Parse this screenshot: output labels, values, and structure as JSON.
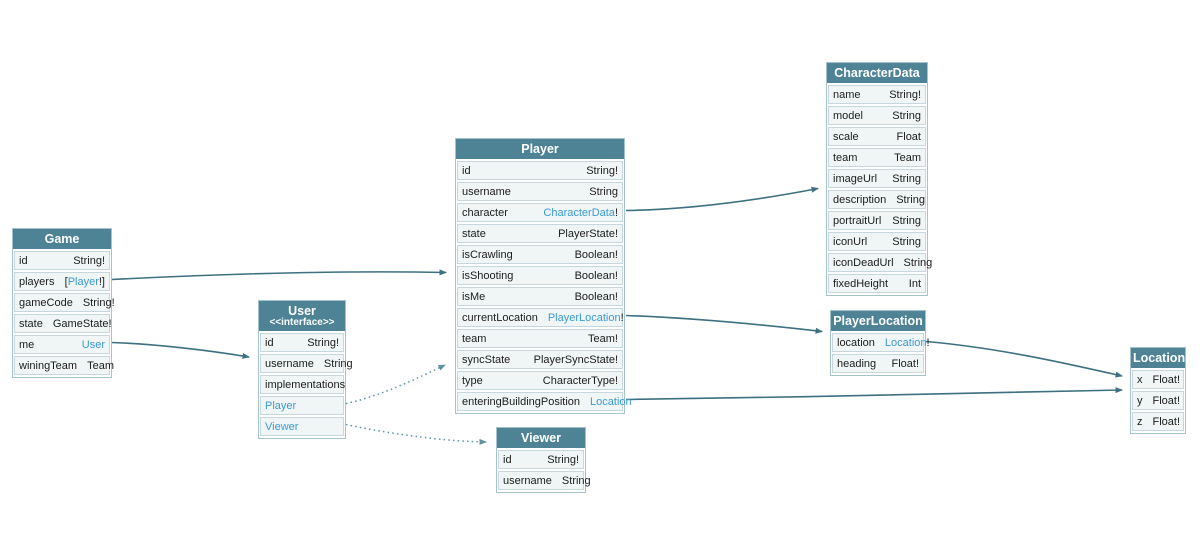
{
  "diagram": {
    "colors": {
      "header_bg": "#4d8394",
      "header_text": "#ffffff",
      "row_bg": "#f0f5f6",
      "row_border": "#c6d8dd",
      "field_text": "#1c1c1c",
      "link_text": "#3c9bd4",
      "edge": "#3d7080",
      "edge_dotted": "#5e93a2"
    },
    "tables": [
      {
        "id": "Game",
        "title": "Game",
        "subtitle": "",
        "fields": [
          {
            "name": "id",
            "type_segments": [
              {
                "text": "String!",
                "link": false
              }
            ]
          },
          {
            "name": "players",
            "type_segments": [
              {
                "text": "[",
                "link": false
              },
              {
                "text": "Player",
                "link": true
              },
              {
                "text": "!]",
                "link": false
              }
            ]
          },
          {
            "name": "gameCode",
            "type_segments": [
              {
                "text": "String!",
                "link": false
              }
            ]
          },
          {
            "name": "state",
            "type_segments": [
              {
                "text": "GameState!",
                "link": false
              }
            ]
          },
          {
            "name": "me",
            "type_segments": [
              {
                "text": "User",
                "link": true
              }
            ]
          },
          {
            "name": "winingTeam",
            "type_segments": [
              {
                "text": "Team",
                "link": false
              }
            ]
          }
        ]
      },
      {
        "id": "User",
        "title": "User",
        "subtitle": "<<interface>>",
        "fields": [
          {
            "name": "id",
            "type_segments": [
              {
                "text": "String!",
                "link": false
              }
            ]
          },
          {
            "name": "username",
            "type_segments": [
              {
                "text": "String",
                "link": false
              }
            ]
          },
          {
            "name": "implementations",
            "type_segments": []
          },
          {
            "name": "Player",
            "name_link": true,
            "type_segments": []
          },
          {
            "name": "Viewer",
            "name_link": true,
            "type_segments": []
          }
        ]
      },
      {
        "id": "Player",
        "title": "Player",
        "subtitle": "",
        "fields": [
          {
            "name": "id",
            "type_segments": [
              {
                "text": "String!",
                "link": false
              }
            ]
          },
          {
            "name": "username",
            "type_segments": [
              {
                "text": "String",
                "link": false
              }
            ]
          },
          {
            "name": "character",
            "type_segments": [
              {
                "text": "CharacterData",
                "link": true
              },
              {
                "text": "!",
                "link": false
              }
            ]
          },
          {
            "name": "state",
            "type_segments": [
              {
                "text": "PlayerState!",
                "link": false
              }
            ]
          },
          {
            "name": "isCrawling",
            "type_segments": [
              {
                "text": "Boolean!",
                "link": false
              }
            ]
          },
          {
            "name": "isShooting",
            "type_segments": [
              {
                "text": "Boolean!",
                "link": false
              }
            ]
          },
          {
            "name": "isMe",
            "type_segments": [
              {
                "text": "Boolean!",
                "link": false
              }
            ]
          },
          {
            "name": "currentLocation",
            "type_segments": [
              {
                "text": "PlayerLocation",
                "link": true
              },
              {
                "text": "!",
                "link": false
              }
            ]
          },
          {
            "name": "team",
            "type_segments": [
              {
                "text": "Team!",
                "link": false
              }
            ]
          },
          {
            "name": "syncState",
            "type_segments": [
              {
                "text": "PlayerSyncState!",
                "link": false
              }
            ]
          },
          {
            "name": "type",
            "type_segments": [
              {
                "text": "CharacterType!",
                "link": false
              }
            ]
          },
          {
            "name": "enteringBuildingPosition",
            "type_segments": [
              {
                "text": "Location",
                "link": true
              }
            ]
          }
        ]
      },
      {
        "id": "Viewer",
        "title": "Viewer",
        "subtitle": "",
        "fields": [
          {
            "name": "id",
            "type_segments": [
              {
                "text": "String!",
                "link": false
              }
            ]
          },
          {
            "name": "username",
            "type_segments": [
              {
                "text": "String",
                "link": false
              }
            ]
          }
        ]
      },
      {
        "id": "CharacterData",
        "title": "CharacterData",
        "subtitle": "",
        "fields": [
          {
            "name": "name",
            "type_segments": [
              {
                "text": "String!",
                "link": false
              }
            ]
          },
          {
            "name": "model",
            "type_segments": [
              {
                "text": "String",
                "link": false
              }
            ]
          },
          {
            "name": "scale",
            "type_segments": [
              {
                "text": "Float",
                "link": false
              }
            ]
          },
          {
            "name": "team",
            "type_segments": [
              {
                "text": "Team",
                "link": false
              }
            ]
          },
          {
            "name": "imageUrl",
            "type_segments": [
              {
                "text": "String",
                "link": false
              }
            ]
          },
          {
            "name": "description",
            "type_segments": [
              {
                "text": "String",
                "link": false
              }
            ]
          },
          {
            "name": "portraitUrl",
            "type_segments": [
              {
                "text": "String",
                "link": false
              }
            ]
          },
          {
            "name": "iconUrl",
            "type_segments": [
              {
                "text": "String",
                "link": false
              }
            ]
          },
          {
            "name": "iconDeadUrl",
            "type_segments": [
              {
                "text": "String",
                "link": false
              }
            ]
          },
          {
            "name": "fixedHeight",
            "type_segments": [
              {
                "text": "Int",
                "link": false
              }
            ]
          }
        ]
      },
      {
        "id": "PlayerLocation",
        "title": "PlayerLocation",
        "subtitle": "",
        "fields": [
          {
            "name": "location",
            "type_segments": [
              {
                "text": "Location",
                "link": true
              },
              {
                "text": "!",
                "link": false
              }
            ]
          },
          {
            "name": "heading",
            "type_segments": [
              {
                "text": "Float!",
                "link": false
              }
            ]
          }
        ]
      },
      {
        "id": "Location",
        "title": "Location",
        "subtitle": "",
        "fields": [
          {
            "name": "x",
            "type_segments": [
              {
                "text": "Float!",
                "link": false
              }
            ]
          },
          {
            "name": "y",
            "type_segments": [
              {
                "text": "Float!",
                "link": false
              }
            ]
          },
          {
            "name": "z",
            "type_segments": [
              {
                "text": "Float!",
                "link": false
              }
            ]
          }
        ]
      }
    ],
    "edges": [
      {
        "from": "Game.players",
        "to": "Player",
        "style": "solid"
      },
      {
        "from": "Game.me",
        "to": "User",
        "style": "solid"
      },
      {
        "from": "Player.character",
        "to": "CharacterData",
        "style": "solid"
      },
      {
        "from": "Player.currentLocation",
        "to": "PlayerLocation",
        "style": "solid"
      },
      {
        "from": "Player.enteringBuildingPosition",
        "to": "Location",
        "style": "solid"
      },
      {
        "from": "PlayerLocation.location",
        "to": "Location",
        "style": "solid"
      },
      {
        "from": "User.Player",
        "to": "Player",
        "style": "dotted"
      },
      {
        "from": "User.Viewer",
        "to": "Viewer",
        "style": "dotted"
      }
    ]
  }
}
